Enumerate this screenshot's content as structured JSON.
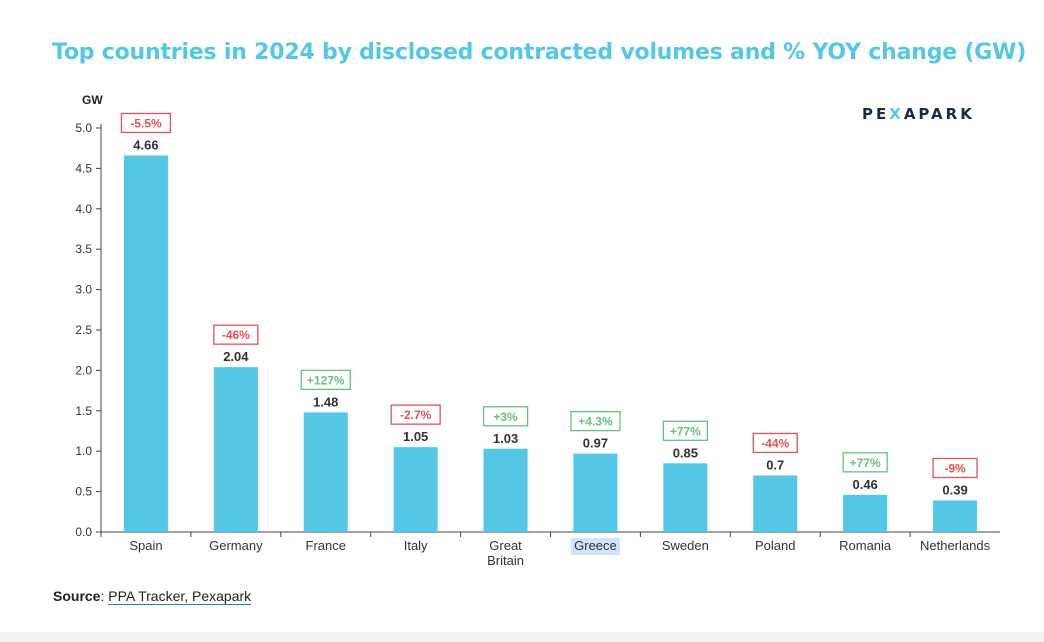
{
  "title": "Top countries in 2024 by disclosed contracted volumes and % YOY change (GW)",
  "logo": "PEXAPARK",
  "source_label": "Source",
  "source_text": "PPA Tracker, Pexapark",
  "colors": {
    "bar": "#55c7e6",
    "negative": "#e05257",
    "positive": "#67c17f",
    "title": "#55c7e6",
    "highlight": "#cfe3fb"
  },
  "chart_data": {
    "type": "bar",
    "title": "Top countries in 2024 by disclosed contracted volumes and % YOY change (GW)",
    "ylabel": "GW",
    "ylim": [
      0,
      5.0
    ],
    "yticks": [
      "0.0",
      "0.5",
      "1.0",
      "1.5",
      "2.0",
      "2.5",
      "3.0",
      "3.5",
      "4.0",
      "4.5",
      "5.0"
    ],
    "categories": [
      "Spain",
      "Germany",
      "France",
      "Italy",
      "Great\nBritain",
      "Greece",
      "Sweden",
      "Poland",
      "Romania",
      "Netherlands"
    ],
    "values": [
      4.66,
      2.04,
      1.48,
      1.05,
      1.03,
      0.97,
      0.85,
      0.7,
      0.46,
      0.39
    ],
    "value_labels": [
      "4.66",
      "2.04",
      "1.48",
      "1.05",
      "1.03",
      "0.97",
      "0.85",
      "0.7",
      "0.46",
      "0.39"
    ],
    "yoy_change": [
      "-5.5%",
      "-46%",
      "+127%",
      "-2.7%",
      "+3%",
      "+4.3%",
      "+77%",
      "-44%",
      "+77%",
      "-9%"
    ],
    "yoy_sign": [
      "negative",
      "negative",
      "positive",
      "negative",
      "positive",
      "positive",
      "positive",
      "negative",
      "positive",
      "negative"
    ],
    "highlighted_category": "Greece",
    "grid": false,
    "legend": "none"
  }
}
